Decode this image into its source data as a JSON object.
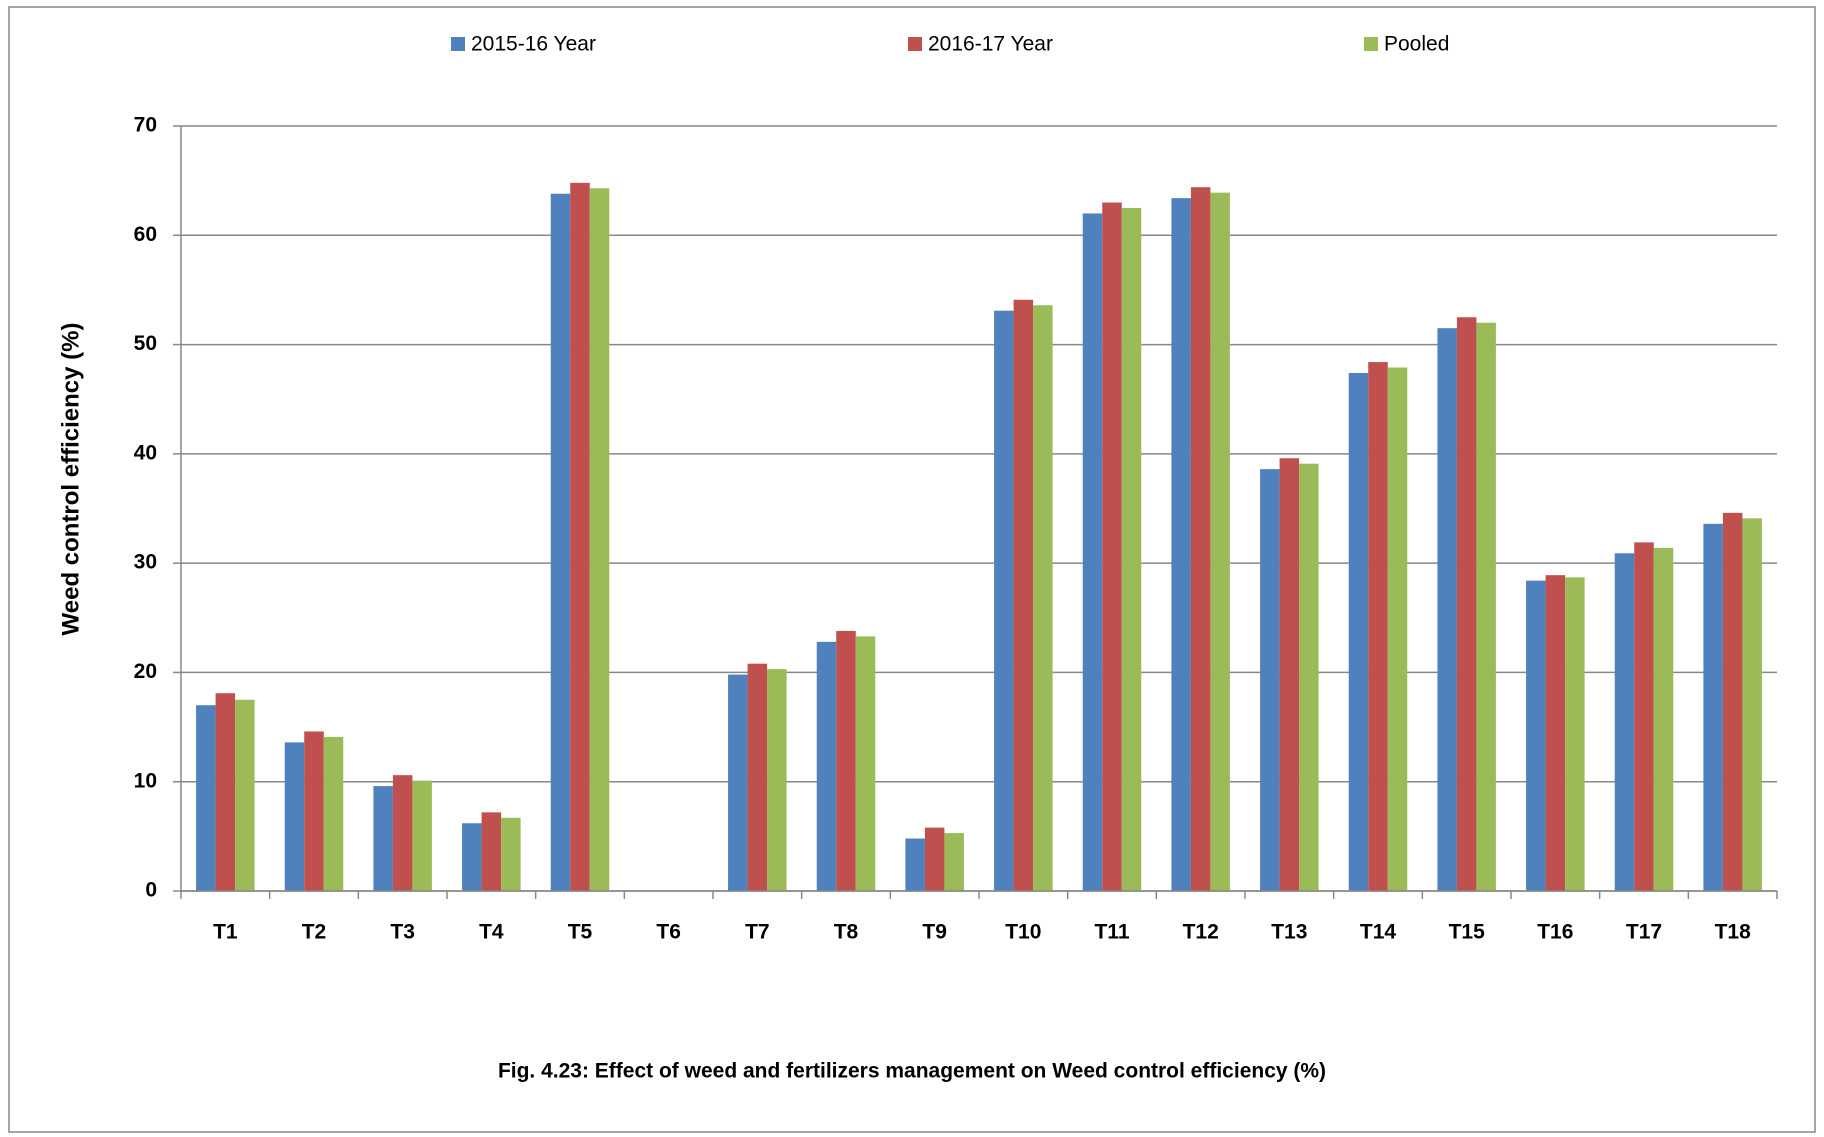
{
  "chart_data": {
    "type": "bar",
    "title": "Fig. 4.23: Effect of weed and fertilizers management on Weed control efficiency (%)",
    "y_label": "Weed control efficiency (%)",
    "categories": [
      "T1",
      "T2",
      "T3",
      "T4",
      "T5",
      "T6",
      "T7",
      "T8",
      "T9",
      "T10",
      "T11",
      "T12",
      "T13",
      "T14",
      "T15",
      "T16",
      "T17",
      "T18"
    ],
    "series": [
      {
        "name": "2015-16 Year",
        "color": "#4f81bd",
        "values": [
          17.0,
          13.6,
          9.6,
          6.2,
          63.8,
          0,
          19.8,
          22.8,
          4.8,
          53.1,
          62.0,
          63.4,
          38.6,
          47.4,
          51.5,
          28.4,
          30.9,
          33.6
        ]
      },
      {
        "name": "2016-17 Year",
        "color": "#c0504d",
        "values": [
          18.1,
          14.6,
          10.6,
          7.2,
          64.8,
          0,
          20.8,
          23.8,
          5.8,
          54.1,
          63.0,
          64.4,
          39.6,
          48.4,
          52.5,
          28.9,
          31.9,
          34.6
        ]
      },
      {
        "name": "Pooled",
        "color": "#9bbb59",
        "values": [
          17.5,
          14.1,
          10.1,
          6.7,
          64.3,
          0,
          20.3,
          23.3,
          5.3,
          53.6,
          62.5,
          63.9,
          39.1,
          47.9,
          52.0,
          28.7,
          31.4,
          34.1
        ]
      }
    ],
    "ylim": [
      0,
      70
    ],
    "yticks": [
      0,
      10,
      20,
      30,
      40,
      50,
      60,
      70
    ],
    "grid": true,
    "legend": "top"
  }
}
